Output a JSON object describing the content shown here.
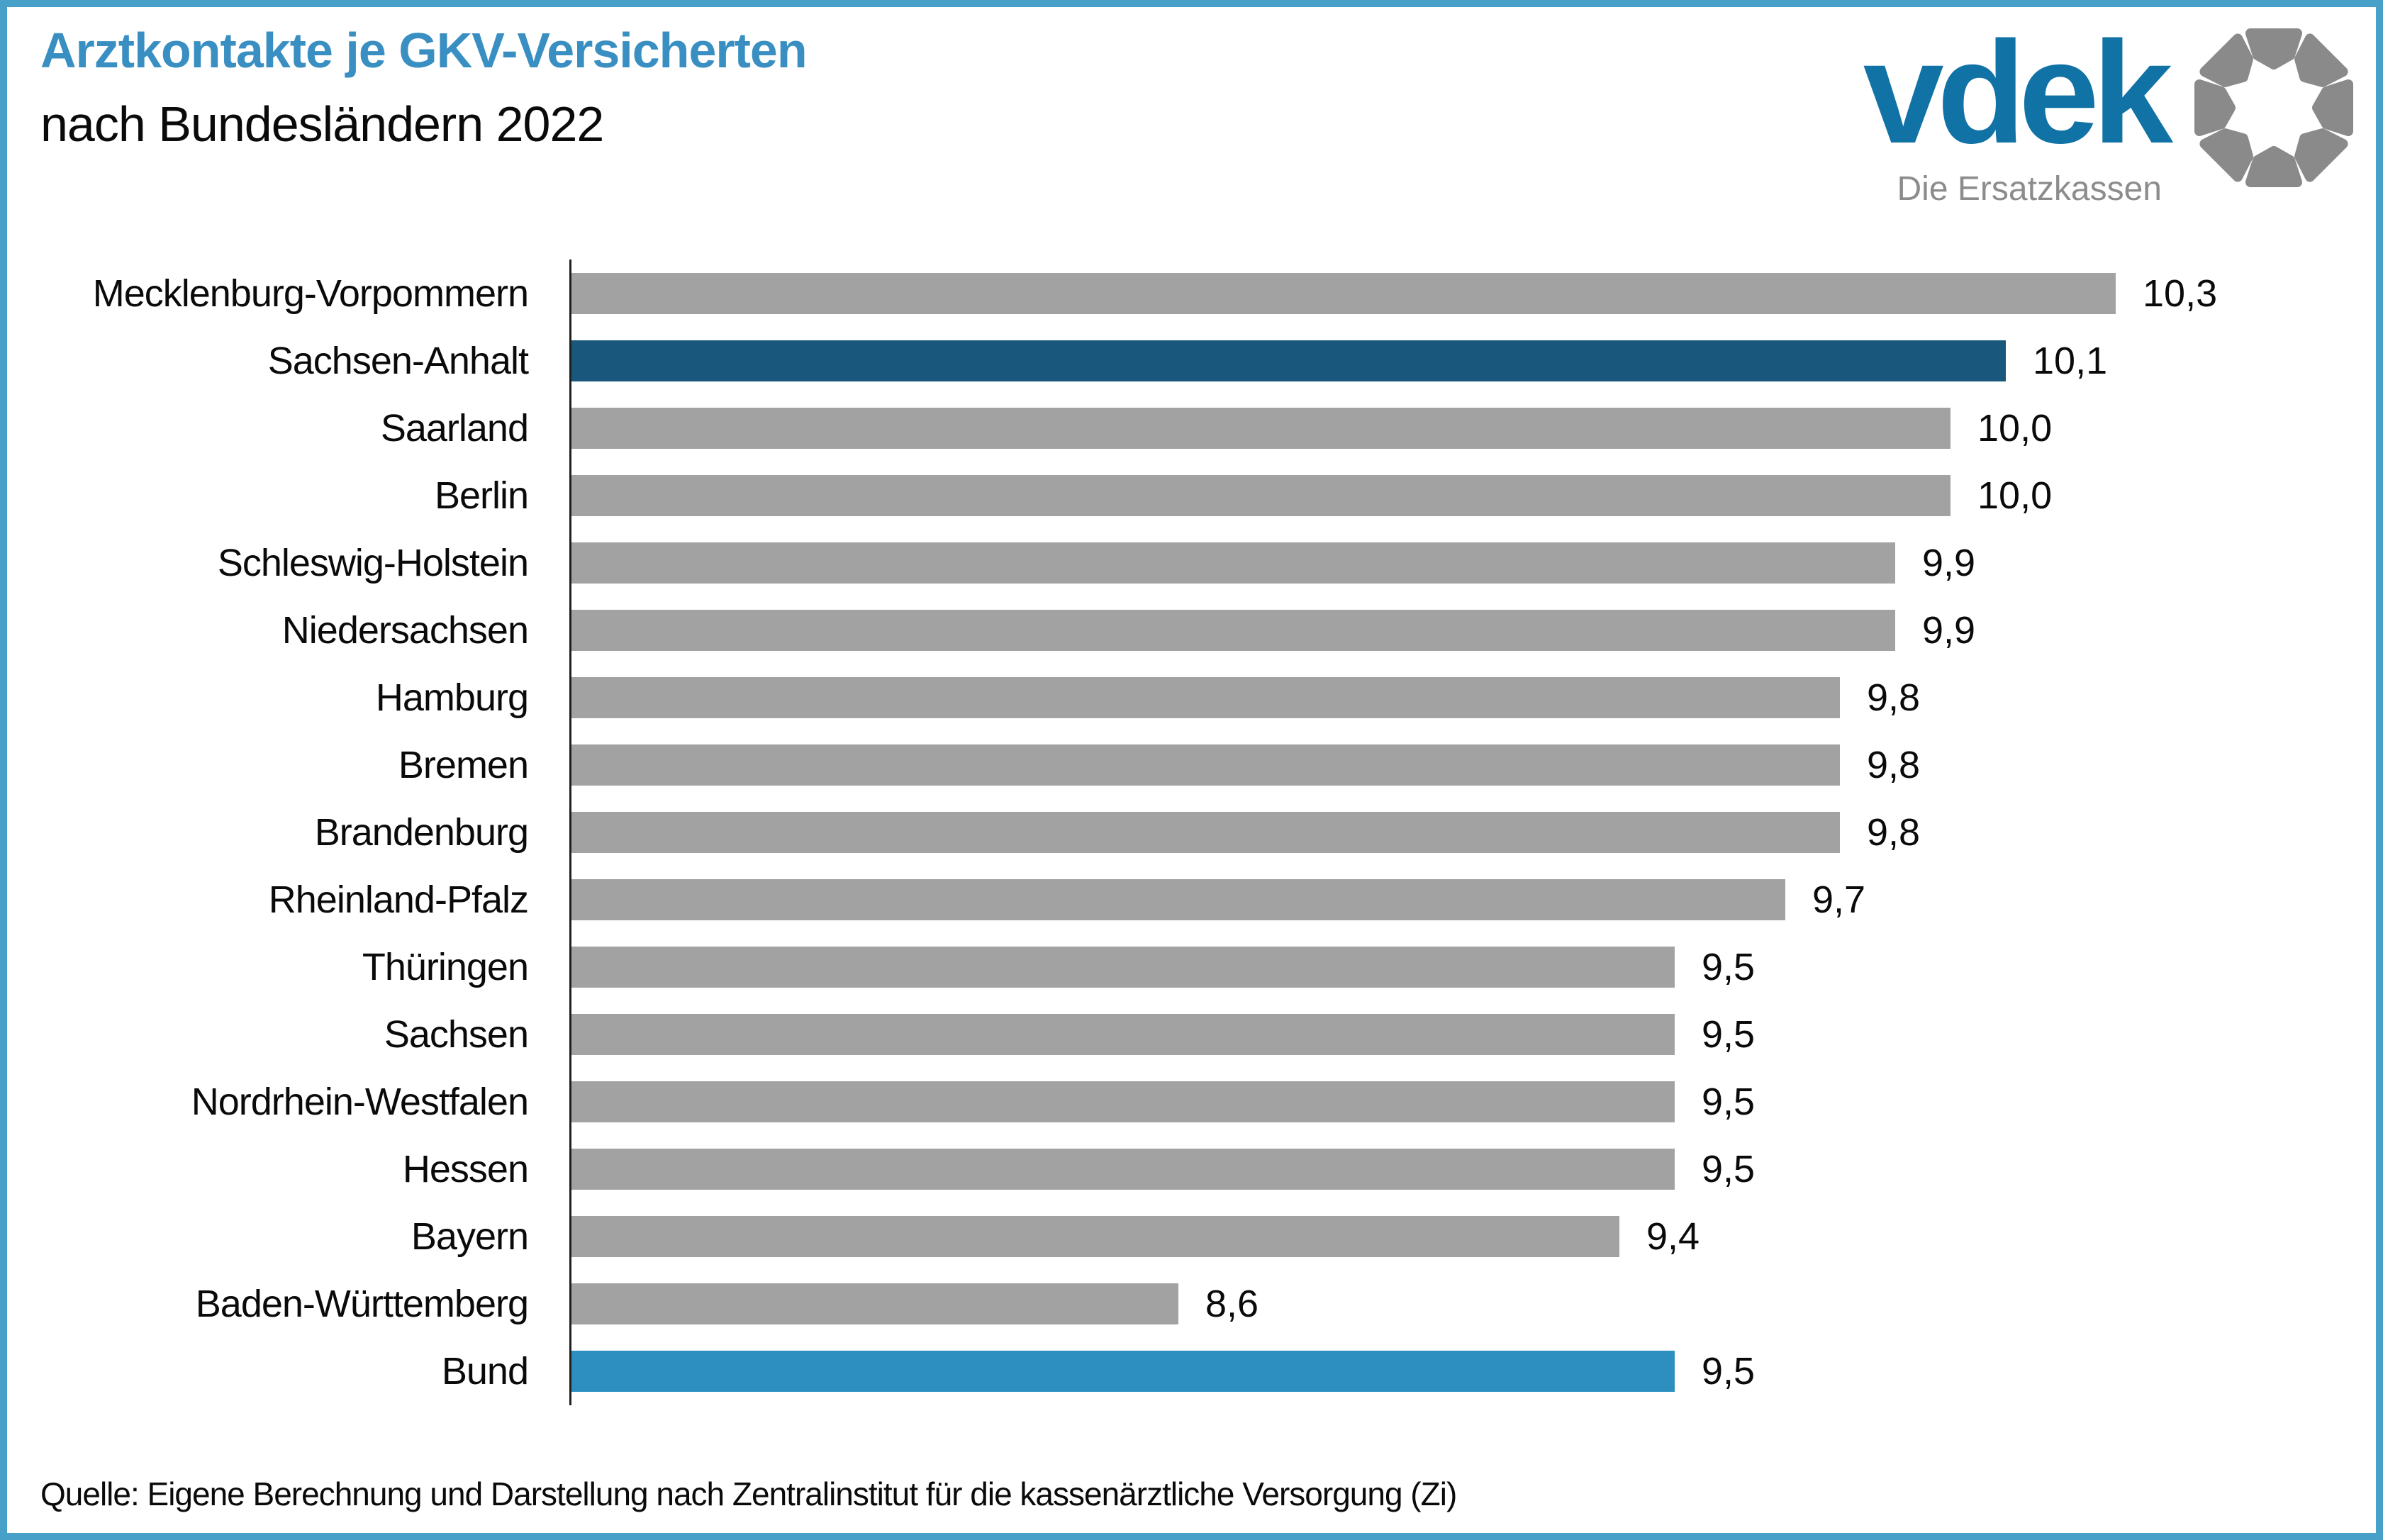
{
  "frame": {
    "border_color": "#47a0c8"
  },
  "header": {
    "title": "Arztkontakte je GKV-Versicherten",
    "subtitle": "nach Bundesländern 2022",
    "title_color": "#3a8fc2"
  },
  "logo": {
    "wordmark": "vdek",
    "tagline": "Die Ersatzkassen",
    "wordmark_color": "#1172a5",
    "tagline_color": "#8c8c8c",
    "ring_color": "#8a8a8a"
  },
  "chart_data": {
    "type": "bar",
    "orientation": "horizontal",
    "title": "Arztkontakte je GKV-Versicherten nach Bundesländern 2022",
    "xlabel": "",
    "ylabel": "",
    "value_axis": {
      "min": 7.5,
      "max": 10.55,
      "ticks_visible": false,
      "grid": false
    },
    "legend": "none",
    "colors": {
      "default": "#a2a2a2",
      "highlight": "#19577c",
      "bund": "#2d8fc0"
    },
    "bars": [
      {
        "label": "Mecklenburg-Vorpommern",
        "value": 10.3,
        "display": "10,3",
        "color_key": "default"
      },
      {
        "label": "Sachsen-Anhalt",
        "value": 10.1,
        "display": "10,1",
        "color_key": "highlight"
      },
      {
        "label": "Saarland",
        "value": 10.0,
        "display": "10,0",
        "color_key": "default"
      },
      {
        "label": "Berlin",
        "value": 10.0,
        "display": "10,0",
        "color_key": "default"
      },
      {
        "label": "Schleswig-Holstein",
        "value": 9.9,
        "display": "9,9",
        "color_key": "default"
      },
      {
        "label": "Niedersachsen",
        "value": 9.9,
        "display": "9,9",
        "color_key": "default"
      },
      {
        "label": "Hamburg",
        "value": 9.8,
        "display": "9,8",
        "color_key": "default"
      },
      {
        "label": "Bremen",
        "value": 9.8,
        "display": "9,8",
        "color_key": "default"
      },
      {
        "label": "Brandenburg",
        "value": 9.8,
        "display": "9,8",
        "color_key": "default"
      },
      {
        "label": "Rheinland-Pfalz",
        "value": 9.7,
        "display": "9,7",
        "color_key": "default"
      },
      {
        "label": "Thüringen",
        "value": 9.5,
        "display": "9,5",
        "color_key": "default"
      },
      {
        "label": "Sachsen",
        "value": 9.5,
        "display": "9,5",
        "color_key": "default"
      },
      {
        "label": "Nordrhein-Westfalen",
        "value": 9.5,
        "display": "9,5",
        "color_key": "default"
      },
      {
        "label": "Hessen",
        "value": 9.5,
        "display": "9,5",
        "color_key": "default"
      },
      {
        "label": "Bayern",
        "value": 9.4,
        "display": "9,4",
        "color_key": "default"
      },
      {
        "label": "Baden-Württemberg",
        "value": 8.6,
        "display": "8,6",
        "color_key": "default"
      },
      {
        "label": "Bund",
        "value": 9.5,
        "display": "9,5",
        "color_key": "bund"
      }
    ]
  },
  "footer": {
    "source": "Quelle: Eigene Berechnung und Darstellung nach Zentralinstitut für die kassenärztliche Versorgung (Zi)"
  }
}
